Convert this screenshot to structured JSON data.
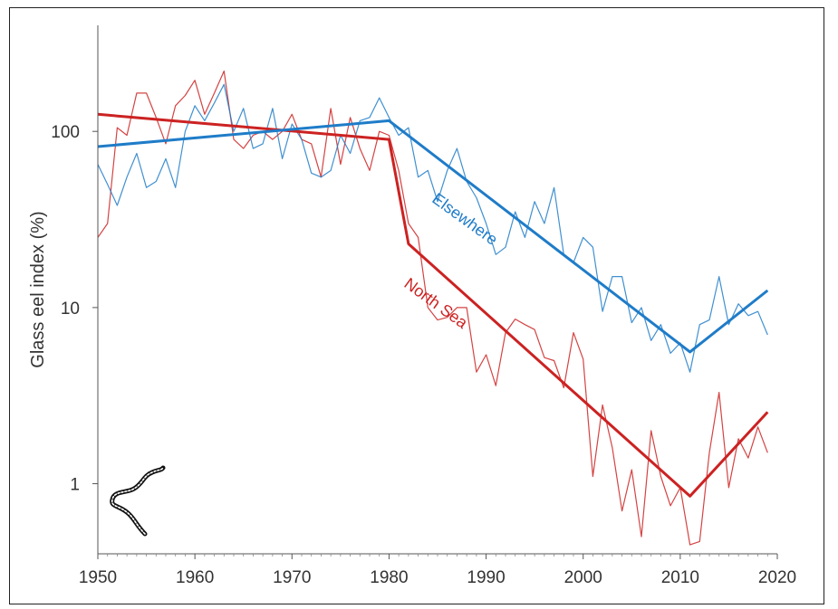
{
  "chart_data": {
    "type": "line",
    "title": "",
    "xlabel": "",
    "ylabel": "Glass eel index (%)",
    "xlim": [
      1950,
      2020
    ],
    "ylim": [
      0.4,
      400
    ],
    "yscale": "log",
    "grid": false,
    "xticks": [
      1950,
      1960,
      1970,
      1980,
      1990,
      2000,
      2010,
      2020
    ],
    "yticks": [
      1,
      10,
      100
    ],
    "ytick_labels": [
      "1",
      "10",
      "100"
    ],
    "colors": {
      "north_sea": "#cc2222",
      "elsewhere": "#1f7cc8"
    },
    "series": [
      {
        "name": "North Sea",
        "kind": "observed",
        "color": "#cc2222",
        "x": [
          1950,
          1951,
          1952,
          1953,
          1954,
          1955,
          1956,
          1957,
          1958,
          1959,
          1960,
          1961,
          1962,
          1963,
          1964,
          1965,
          1966,
          1967,
          1968,
          1969,
          1970,
          1971,
          1972,
          1973,
          1974,
          1975,
          1976,
          1977,
          1978,
          1979,
          1980,
          1981,
          1982,
          1983,
          1984,
          1985,
          1986,
          1987,
          1988,
          1989,
          1990,
          1991,
          1992,
          1993,
          1994,
          1995,
          1996,
          1997,
          1998,
          1999,
          2000,
          2001,
          2002,
          2003,
          2004,
          2005,
          2006,
          2007,
          2008,
          2009,
          2010,
          2011,
          2012,
          2013,
          2014,
          2015,
          2016,
          2017,
          2018,
          2019
        ],
        "values": [
          25,
          30,
          105,
          95,
          165,
          165,
          120,
          85,
          140,
          160,
          195,
          125,
          165,
          220,
          90,
          80,
          95,
          100,
          90,
          100,
          125,
          90,
          85,
          55,
          135,
          65,
          120,
          80,
          60,
          100,
          95,
          60,
          30,
          25,
          10,
          8.5,
          8.8,
          10,
          10,
          4.3,
          5.4,
          3.6,
          7.2,
          8.6,
          8,
          7.5,
          5.2,
          5,
          3.5,
          7.2,
          5.1,
          1.1,
          2.8,
          1.6,
          0.7,
          1.2,
          0.5,
          2,
          1.1,
          0.75,
          0.95,
          0.45,
          0.47,
          1.5,
          3.3,
          0.95,
          1.8,
          1.4,
          2.1,
          1.5
        ]
      },
      {
        "name": "Elsewhere",
        "kind": "observed",
        "color": "#1f7cc8",
        "x": [
          1950,
          1951,
          1952,
          1953,
          1954,
          1955,
          1956,
          1957,
          1958,
          1959,
          1960,
          1961,
          1962,
          1963,
          1964,
          1965,
          1966,
          1967,
          1968,
          1969,
          1970,
          1971,
          1972,
          1973,
          1974,
          1975,
          1976,
          1977,
          1978,
          1979,
          1980,
          1981,
          1982,
          1983,
          1984,
          1985,
          1986,
          1987,
          1988,
          1989,
          1990,
          1991,
          1992,
          1993,
          1994,
          1995,
          1996,
          1997,
          1998,
          1999,
          2000,
          2001,
          2002,
          2003,
          2004,
          2005,
          2006,
          2007,
          2008,
          2009,
          2010,
          2011,
          2012,
          2013,
          2014,
          2015,
          2016,
          2017,
          2018,
          2019
        ],
        "values": [
          65,
          50,
          38,
          55,
          75,
          48,
          52,
          70,
          48,
          100,
          140,
          115,
          145,
          185,
          100,
          135,
          80,
          85,
          135,
          70,
          110,
          90,
          58,
          55,
          60,
          95,
          75,
          115,
          120,
          155,
          120,
          95,
          105,
          55,
          60,
          40,
          60,
          80,
          52,
          42,
          30,
          20,
          22,
          35,
          25,
          40,
          30,
          48,
          20,
          18,
          25,
          22,
          9.5,
          15,
          15,
          8.2,
          10,
          6.5,
          8,
          5.5,
          6.3,
          4.3,
          8,
          8.5,
          15,
          8,
          10.5,
          9,
          9.5,
          7
        ]
      },
      {
        "name": "North Sea",
        "kind": "trend",
        "color": "#cc2222",
        "x": [
          1950,
          1980,
          1982,
          2011,
          2019
        ],
        "values": [
          125,
          90,
          23,
          0.85,
          2.55
        ]
      },
      {
        "name": "Elsewhere",
        "kind": "trend",
        "color": "#1f7cc8",
        "x": [
          1950,
          1980,
          2011,
          2019
        ],
        "values": [
          82,
          115,
          5.6,
          12.5
        ]
      }
    ],
    "annotations": [
      {
        "text": "Elsewhere",
        "color": "#1f7cc8",
        "x": 1987.5,
        "y": 30
      },
      {
        "text": "North Sea",
        "color": "#cc2222",
        "x": 1984.5,
        "y": 10
      }
    ],
    "legend": "inline labels on trend lines"
  }
}
